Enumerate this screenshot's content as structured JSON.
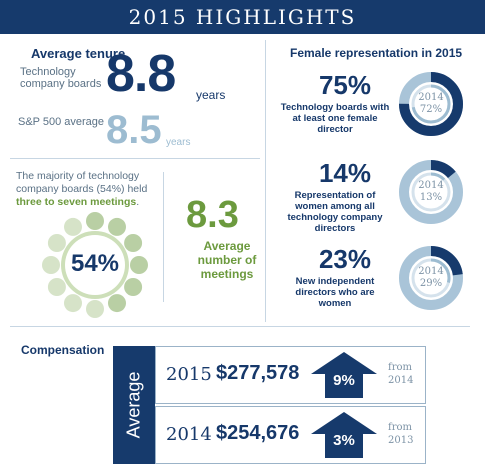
{
  "title": "2015 HIGHLIGHTS",
  "tenure": {
    "heading": "Average tenure",
    "tech_label": "Technology company boards",
    "tech_value": "8.8",
    "tech_unit": "years",
    "sp_label": "S&P 500 average",
    "sp_value": "8.5",
    "sp_unit": "years"
  },
  "meetings": {
    "text_part1": "The majority of technology company boards (54%) held",
    "text_highlight": "three to seven meetings",
    "text_end": ".",
    "circle_value": "54%",
    "circle_fraction": 0.54,
    "average_value": "8.3",
    "average_label": "Average number of meetings"
  },
  "female": {
    "heading": "Female representation in 2015",
    "items": [
      {
        "percent": "75%",
        "value": 0.75,
        "desc": "Technology boards with at least one female director",
        "prior_year": "2014",
        "prior_value": "72%",
        "prior_fraction": 0.72
      },
      {
        "percent": "14%",
        "value": 0.14,
        "desc": "Representation of women among all technology company directors",
        "prior_year": "2014",
        "prior_value": "13%",
        "prior_fraction": 0.13
      },
      {
        "percent": "23%",
        "value": 0.23,
        "desc": "New independent directors who are women",
        "prior_year": "2014",
        "prior_value": "29%",
        "prior_fraction": 0.29
      }
    ]
  },
  "compensation": {
    "heading": "Compensation",
    "side_label": "Average",
    "rows": [
      {
        "year": "2015",
        "amount": "$277,578",
        "change": "9%",
        "from_label": "from",
        "from_year": "2014"
      },
      {
        "year": "2014",
        "amount": "$254,676",
        "change": "3%",
        "from_label": "from",
        "from_year": "2013"
      }
    ]
  },
  "colors": {
    "navy": "#163a6c",
    "light_blue": "#9dbcd1",
    "green": "#6c9a3e",
    "light_green": "#b9cfa4"
  }
}
